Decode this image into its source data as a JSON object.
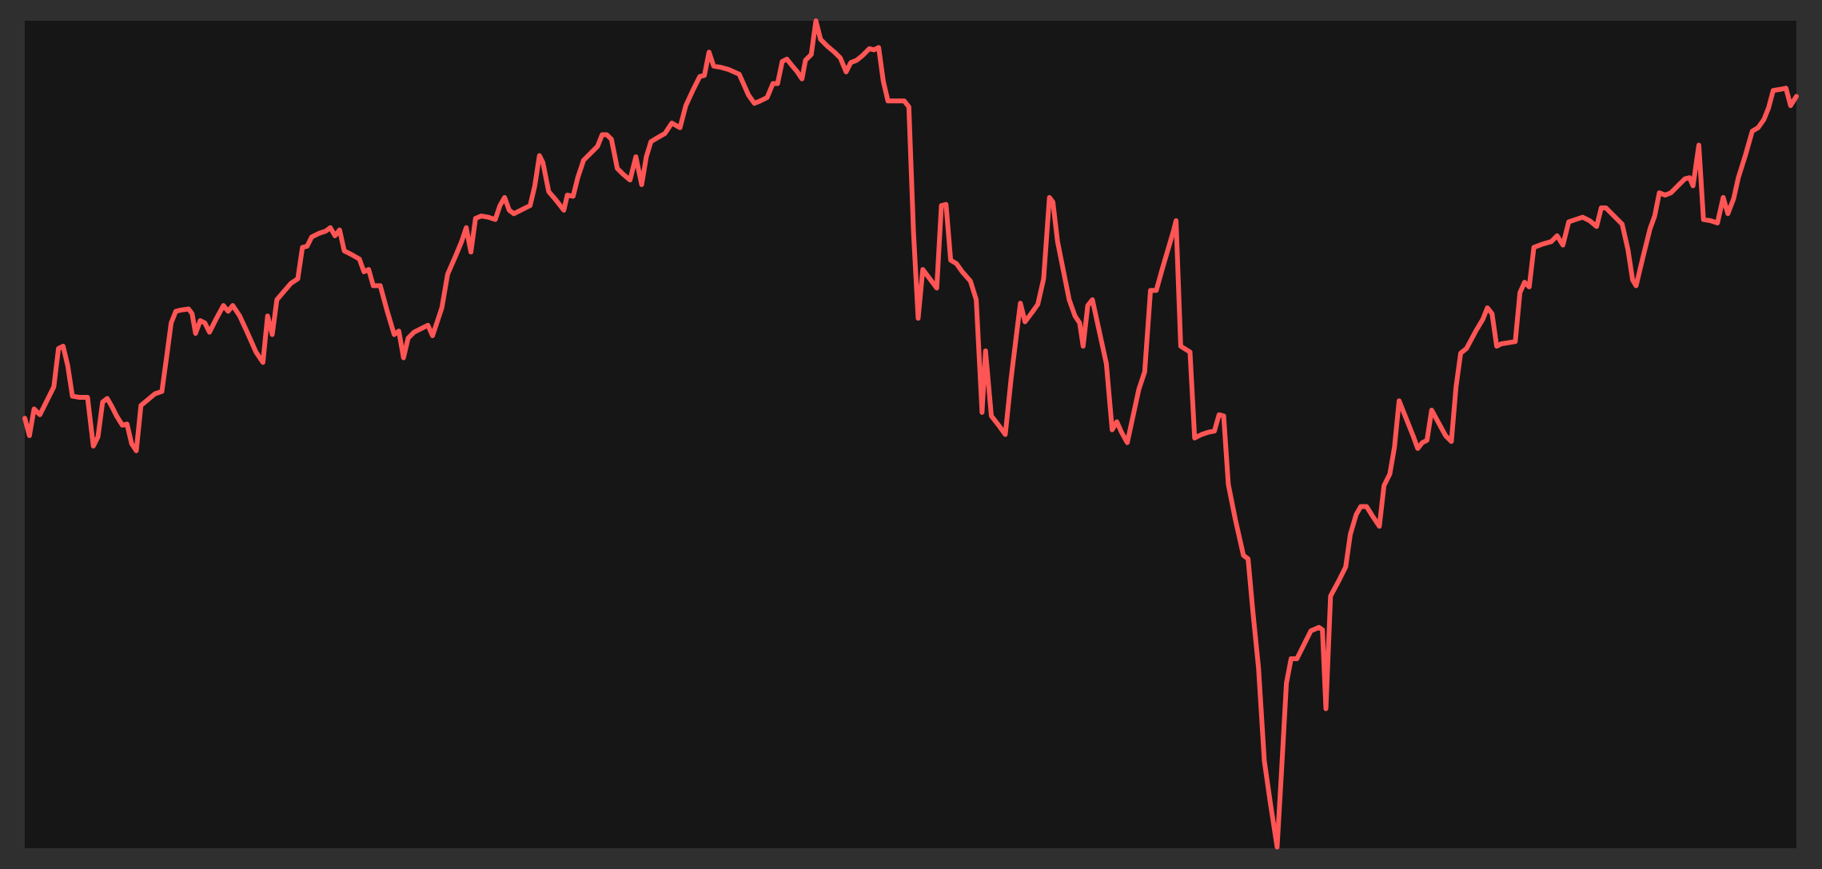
{
  "chart_data": {
    "type": "line",
    "color": "#ff5555",
    "xlim": [
      0,
      1525
    ],
    "ylim": [
      0,
      712
    ],
    "x": [
      0,
      4,
      8,
      13,
      19,
      25,
      29,
      33,
      37,
      41,
      47,
      54,
      59,
      63,
      67,
      71,
      75,
      79,
      84,
      88,
      92,
      96,
      100,
      106,
      112,
      118,
      122,
      126,
      130,
      134,
      141,
      144,
      147,
      151,
      155,
      159,
      165,
      171,
      175,
      179,
      185,
      191,
      199,
      205,
      209,
      213,
      217,
      223,
      229,
      235,
      239,
      243,
      247,
      253,
      259,
      263,
      267,
      271,
      275,
      281,
      288,
      292,
      296,
      300,
      306,
      312,
      318,
      322,
      326,
      330,
      335,
      341,
      347,
      351,
      359,
      364,
      371,
      376,
      380,
      384,
      388,
      393,
      399,
      405,
      409,
      413,
      417,
      421,
      427,
      435,
      439,
      443,
      446,
      451,
      457,
      464,
      467,
      472,
      476,
      481,
      487,
      493,
      497,
      501,
      505,
      510,
      515,
      521,
      526,
      531,
      535,
      539,
      544,
      551,
      557,
      564,
      569,
      575,
      581,
      585,
      589,
      593,
      599,
      606,
      615,
      623,
      628,
      633,
      639,
      644,
      648,
      652,
      656,
      660,
      665,
      669,
      672,
      677,
      681,
      685,
      691,
      697,
      702,
      707,
      711,
      716,
      721,
      727,
      731,
      735,
      739,
      743,
      749,
      757,
      761,
      765,
      769,
      773,
      779,
      785,
      789,
      793,
      797,
      802,
      807,
      814,
      819,
      824,
      827,
      832,
      839,
      844,
      849,
      854,
      857,
      861,
      867,
      872,
      877,
      882,
      885,
      889,
      894,
      899,
      904,
      908,
      911,
      915,
      919,
      924,
      931,
      936,
      940,
      944,
      949,
      954,
      959,
      964,
      969,
      974,
      979,
      989,
      991,
      995,
      1003,
      1007,
      1013,
      1019,
      1024,
      1028,
      1032,
      1036,
      1042,
      1049,
      1053,
      1057,
      1062,
      1067,
      1072,
      1078,
      1082,
      1086,
      1090,
      1095,
      1101,
      1107,
      1114,
      1117,
      1120,
      1124,
      1131,
      1137,
      1141,
      1146,
      1150,
      1155,
      1160,
      1166,
      1170,
      1175,
      1179,
      1183,
      1189,
      1195,
      1199,
      1203,
      1207,
      1211,
      1217,
      1223,
      1228,
      1232,
      1236,
      1241,
      1249,
      1255,
      1259,
      1263,
      1267,
      1271,
      1277,
      1283,
      1287,
      1291,
      1295,
      1299,
      1307,
      1314,
      1319,
      1324,
      1329,
      1335,
      1341,
      1347,
      1353,
      1357,
      1361,
      1367,
      1375,
      1380,
      1384,
      1387,
      1393,
      1399,
      1403,
      1407,
      1412,
      1417,
      1423,
      1429,
      1433,
      1436,
      1441,
      1445,
      1451,
      1457,
      1462,
      1466,
      1471,
      1475,
      1481,
      1487,
      1492,
      1497,
      1501,
      1505,
      1511,
      1516,
      1520,
      1525
    ],
    "values": [
      370,
      355,
      378,
      373,
      385,
      397,
      430,
      432,
      415,
      389,
      388,
      388,
      346,
      354,
      384,
      387,
      380,
      372,
      364,
      365,
      348,
      342,
      381,
      386,
      391,
      393,
      422,
      452,
      462,
      463,
      464,
      460,
      443,
      454,
      452,
      444,
      456,
      467,
      462,
      467,
      458,
      445,
      427,
      418,
      458,
      442,
      472,
      479,
      486,
      490,
      517,
      518,
      526,
      529,
      531,
      534,
      527,
      532,
      514,
      511,
      507,
      496,
      498,
      484,
      484,
      462,
      442,
      445,
      422,
      439,
      444,
      447,
      450,
      441,
      465,
      494,
      510,
      522,
      534,
      513,
      542,
      544,
      543,
      541,
      553,
      560,
      549,
      546,
      549,
      553,
      570,
      596,
      590,
      565,
      558,
      549,
      562,
      561,
      577,
      592,
      598,
      604,
      614,
      614,
      610,
      585,
      580,
      575,
      595,
      571,
      595,
      608,
      611,
      615,
      624,
      620,
      639,
      652,
      664,
      665,
      685,
      673,
      672,
      670,
      666,
      648,
      641,
      643,
      646,
      658,
      658,
      677,
      679,
      674,
      668,
      662,
      678,
      683,
      712,
      696,
      690,
      685,
      680,
      668,
      676,
      678,
      682,
      688,
      687,
      689,
      660,
      643,
      643,
      643,
      638,
      530,
      456,
      498,
      490,
      482,
      553,
      554,
      506,
      503,
      496,
      488,
      472,
      375,
      428,
      372,
      363,
      356,
      404,
      445,
      469,
      453,
      461,
      468,
      490,
      560,
      556,
      522,
      497,
      472,
      458,
      452,
      432,
      467,
      472,
      449,
      417,
      360,
      367,
      358,
      349,
      372,
      395,
      410,
      480,
      480,
      498,
      532,
      540,
      432,
      427,
      353,
      356,
      358,
      359,
      373,
      372,
      313,
      283,
      252,
      249,
      205,
      155,
      75,
      40,
      1,
      70,
      142,
      163,
      163,
      175,
      187,
      190,
      188,
      120,
      217,
      230,
      242,
      270,
      287,
      294,
      294,
      286,
      277,
      312,
      322,
      345,
      385,
      370,
      355,
      344,
      349,
      351,
      377,
      366,
      355,
      350,
      397,
      426,
      430,
      445,
      455,
      465,
      460,
      432,
      434,
      435,
      436,
      478,
      487,
      483,
      517,
      520,
      522,
      527,
      519,
      539,
      541,
      543,
      540,
      535,
      551,
      551,
      545,
      537,
      515,
      489,
      484,
      509,
      533,
      544,
      564,
      562,
      564,
      570,
      576,
      577,
      570,
      605,
      541,
      540,
      538,
      560,
      546,
      559,
      577,
      596,
      617,
      620,
      627,
      637,
      652,
      653,
      654,
      639,
      647
    ]
  }
}
